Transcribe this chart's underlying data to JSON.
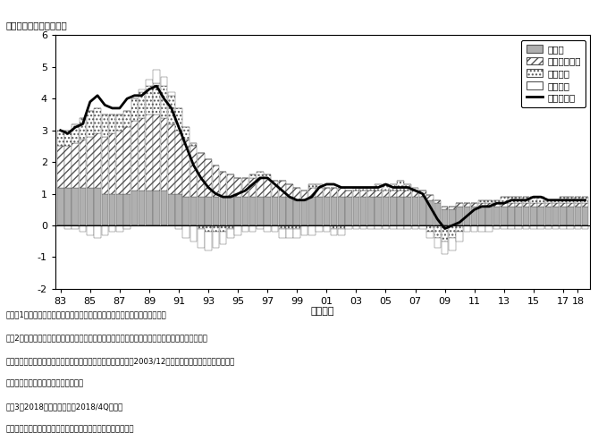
{
  "ylabel_top": "（前年比、寄与度、％）",
  "xlabel": "年度半期",
  "ylim": [
    -2,
    6
  ],
  "yticks": [
    -2,
    -1,
    0,
    1,
    2,
    3,
    4,
    5,
    6
  ],
  "legend_tfp": "ＴＦＰ",
  "legend_capital": "資本ストック",
  "legend_employment": "就業者数",
  "legend_hours": "労働時間",
  "legend_potential": "潜在成長率",
  "note_line1": "（注）1．需給ギャップおよび潜在成長率は、日本銀行調査統計局の試算値。",
  "note_line2": "　　2．短観加重平均ＤＩ（全産業全規模）は、生産・営業用設備判断ＤＩと雇用人員判断ＤＩを",
  "note_line3": "　　　　資本・労働分配率で加重平均して算出。なお、短観で2003/12月調査には、調査の枚組み見直し",
  "note_line4": "　　　　による不連続が生じている。",
  "note_line5": "　　3．2018年度下半期は、2018/4Qの値。",
  "source": "（出所）内閣府、日本銀行、総務省、厚生労働省、経済産業省",
  "tfp": [
    1.2,
    1.2,
    1.2,
    1.2,
    1.2,
    1.2,
    1.0,
    1.0,
    1.0,
    1.0,
    1.1,
    1.1,
    1.1,
    1.1,
    1.1,
    1.0,
    1.0,
    0.9,
    0.9,
    0.9,
    0.9,
    0.9,
    0.9,
    0.9,
    0.9,
    0.9,
    0.9,
    0.9,
    0.9,
    0.9,
    0.9,
    0.9,
    0.8,
    0.8,
    0.9,
    0.9,
    0.9,
    0.9,
    0.9,
    0.9,
    0.9,
    0.9,
    0.9,
    0.9,
    0.9,
    0.9,
    0.9,
    0.9,
    0.9,
    0.9,
    0.8,
    0.7,
    0.5,
    0.5,
    0.6,
    0.6,
    0.6,
    0.6,
    0.6,
    0.6,
    0.6,
    0.6,
    0.6,
    0.6,
    0.6,
    0.6,
    0.6,
    0.6,
    0.6,
    0.6,
    0.6,
    0.6
  ],
  "capital": [
    1.3,
    1.3,
    1.4,
    1.5,
    1.6,
    1.7,
    1.8,
    1.9,
    2.0,
    2.1,
    2.2,
    2.3,
    2.4,
    2.4,
    2.3,
    2.2,
    2.0,
    1.8,
    1.6,
    1.4,
    1.2,
    1.0,
    0.8,
    0.7,
    0.6,
    0.6,
    0.6,
    0.6,
    0.6,
    0.5,
    0.5,
    0.4,
    0.4,
    0.3,
    0.3,
    0.3,
    0.3,
    0.3,
    0.3,
    0.2,
    0.2,
    0.2,
    0.2,
    0.2,
    0.2,
    0.2,
    0.2,
    0.2,
    0.2,
    0.2,
    0.15,
    0.1,
    0.1,
    0.1,
    0.1,
    0.1,
    0.1,
    0.1,
    0.1,
    0.1,
    0.1,
    0.1,
    0.1,
    0.1,
    0.1,
    0.1,
    0.1,
    0.1,
    0.1,
    0.1,
    0.1,
    0.1
  ],
  "employment": [
    0.5,
    0.5,
    0.6,
    0.7,
    0.8,
    0.8,
    0.7,
    0.6,
    0.5,
    0.5,
    0.7,
    0.8,
    0.9,
    1.0,
    1.0,
    0.9,
    0.7,
    0.4,
    0.1,
    -0.1,
    -0.2,
    -0.2,
    -0.2,
    -0.1,
    0.0,
    0.0,
    0.1,
    0.2,
    0.1,
    0.0,
    -0.1,
    -0.1,
    -0.1,
    0.0,
    0.1,
    0.1,
    0.0,
    -0.1,
    -0.1,
    0.0,
    0.1,
    0.1,
    0.1,
    0.2,
    0.2,
    0.2,
    0.3,
    0.2,
    0.1,
    0.0,
    -0.2,
    -0.4,
    -0.5,
    -0.4,
    -0.2,
    0.0,
    0.0,
    0.1,
    0.1,
    0.1,
    0.2,
    0.2,
    0.2,
    0.2,
    0.2,
    0.2,
    0.1,
    0.1,
    0.2,
    0.2,
    0.2,
    0.2
  ],
  "hours": [
    0.0,
    -0.1,
    -0.1,
    -0.2,
    -0.3,
    -0.4,
    -0.3,
    -0.2,
    -0.2,
    -0.1,
    0.0,
    0.1,
    0.2,
    0.4,
    0.3,
    0.1,
    -0.1,
    -0.4,
    -0.5,
    -0.6,
    -0.6,
    -0.5,
    -0.4,
    -0.3,
    -0.3,
    -0.2,
    -0.2,
    -0.1,
    -0.2,
    -0.2,
    -0.3,
    -0.3,
    -0.3,
    -0.3,
    -0.3,
    -0.2,
    -0.2,
    -0.2,
    -0.2,
    -0.1,
    -0.1,
    -0.1,
    -0.1,
    -0.1,
    -0.1,
    -0.1,
    -0.1,
    -0.1,
    -0.1,
    -0.1,
    -0.2,
    -0.3,
    -0.4,
    -0.4,
    -0.3,
    -0.2,
    -0.2,
    -0.2,
    -0.2,
    -0.1,
    -0.1,
    -0.1,
    -0.1,
    -0.1,
    -0.1,
    -0.1,
    -0.1,
    -0.1,
    -0.1,
    -0.1,
    -0.1,
    -0.1
  ],
  "potential_growth": [
    3.0,
    2.9,
    3.1,
    3.2,
    3.9,
    4.1,
    3.8,
    3.7,
    3.7,
    4.0,
    4.1,
    4.1,
    4.3,
    4.4,
    4.0,
    3.7,
    3.1,
    2.5,
    1.9,
    1.5,
    1.2,
    1.0,
    0.9,
    0.9,
    1.0,
    1.1,
    1.3,
    1.5,
    1.5,
    1.3,
    1.1,
    0.9,
    0.8,
    0.8,
    0.9,
    1.2,
    1.3,
    1.3,
    1.2,
    1.2,
    1.2,
    1.2,
    1.2,
    1.2,
    1.3,
    1.2,
    1.2,
    1.2,
    1.1,
    1.0,
    0.6,
    0.2,
    -0.1,
    0.0,
    0.1,
    0.3,
    0.5,
    0.6,
    0.6,
    0.7,
    0.7,
    0.8,
    0.8,
    0.8,
    0.9,
    0.9,
    0.8,
    0.8,
    0.8,
    0.8,
    0.8,
    0.8
  ],
  "xtick_positions": [
    0,
    4,
    8,
    12,
    16,
    20,
    24,
    28,
    32,
    36,
    40,
    44,
    48,
    52,
    56,
    60,
    64,
    68,
    70
  ],
  "xtick_labels": [
    "83",
    "85",
    "87",
    "89",
    "91",
    "93",
    "95",
    "97",
    "99",
    "01",
    "03",
    "05",
    "07",
    "09",
    "11",
    "13",
    "15",
    "17",
    "18"
  ]
}
